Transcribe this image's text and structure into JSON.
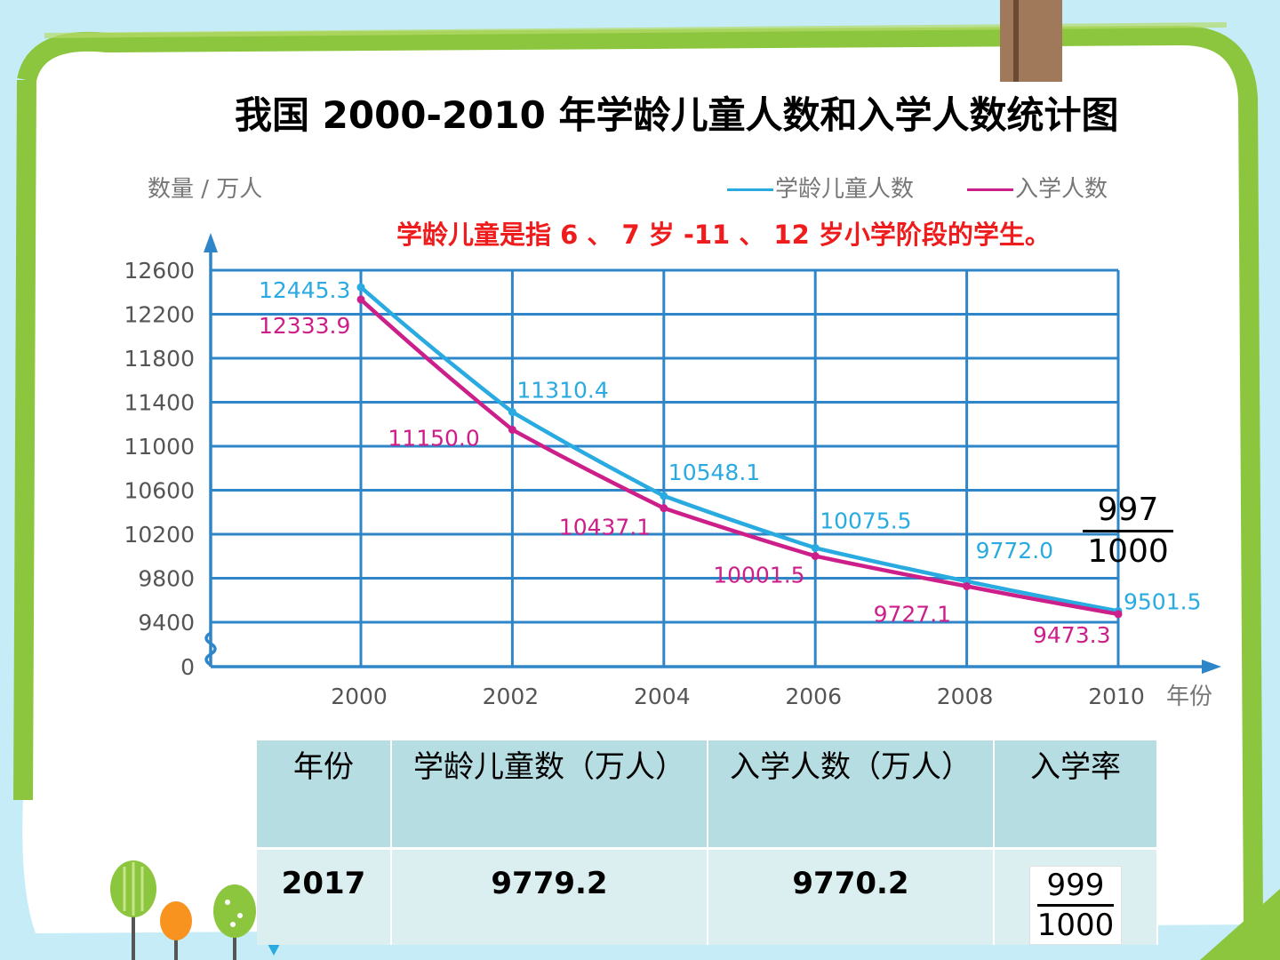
{
  "title": "我国 2000-2010 年学龄儿童人数和入学人数统计图",
  "note": "学龄儿童是指 6 、 7 岁 -11 、 12 岁小学阶段的学生。",
  "fraction_overlay": {
    "numerator": "997",
    "denominator": "1000"
  },
  "colors": {
    "children": "#29abe2",
    "enrolled": "#cc1f8a",
    "grid": "#2e86c9",
    "frame": "#8cc63f"
  },
  "chart_data": {
    "type": "line",
    "title": "我国 2000-2010 年学龄儿童人数和入学人数统计图",
    "ylabel": "数量 / 万人",
    "xlabel": "年份",
    "x": [
      2000,
      2002,
      2004,
      2006,
      2008,
      2010
    ],
    "x_tick_labels": [
      "2000",
      "2002",
      "2004",
      "2006",
      "2008",
      "2010"
    ],
    "y_ticks": [
      0,
      9400,
      9800,
      10200,
      10600,
      11000,
      11400,
      11800,
      12200,
      12600
    ],
    "y_tick_labels": [
      "0",
      "9400",
      "9800",
      "10200",
      "10600",
      "11000",
      "11400",
      "11800",
      "12200",
      "12600"
    ],
    "ylim": [
      9400,
      12600
    ],
    "y_axis_break": true,
    "grid": true,
    "legend_position": "top-right",
    "series": [
      {
        "name": "学龄儿童人数",
        "values": [
          12445.3,
          11310.4,
          10548.1,
          10075.5,
          9772.0,
          9501.5
        ],
        "labels": [
          "12445.3",
          "11310.4",
          "10548.1",
          "10075.5",
          "9772.0",
          "9501.5"
        ]
      },
      {
        "name": "入学人数",
        "values": [
          12333.9,
          11150.0,
          10437.1,
          10001.5,
          9727.1,
          9473.3
        ],
        "labels": [
          "12333.9",
          "11150.0",
          "10437.1",
          "10001.5",
          "9727.1",
          "9473.3"
        ]
      }
    ]
  },
  "table": {
    "headers": [
      "年份",
      "学龄儿童数（万人）",
      "入学人数（万人）",
      "入学率"
    ],
    "row": {
      "year": "2017",
      "children": "9779.2",
      "enrolled": "9770.2",
      "rate_numerator": "999",
      "rate_denominator": "1000"
    }
  }
}
